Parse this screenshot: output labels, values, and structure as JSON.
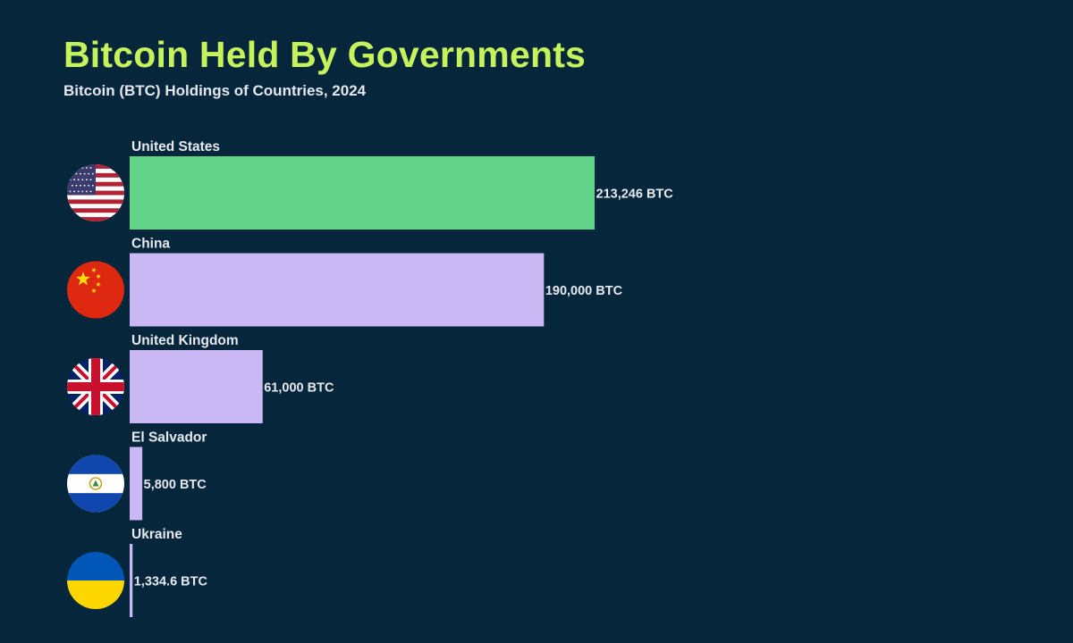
{
  "header": {
    "title": "Bitcoin Held By Governments",
    "subtitle": "Bitcoin (BTC) Holdings of Countries, 2024"
  },
  "chart_data": {
    "type": "bar",
    "orientation": "horizontal",
    "title": "Bitcoin Held By Governments",
    "subtitle": "Bitcoin (BTC) Holdings of Countries, 2024",
    "xlabel": "",
    "ylabel": "",
    "unit": "BTC",
    "grid": false,
    "legend": "none",
    "categories": [
      "United States",
      "China",
      "United Kingdom",
      "El Salvador",
      "Ukraine"
    ],
    "values": [
      213246,
      190000,
      61000,
      5800,
      1334.6
    ],
    "value_labels": [
      "213,246 BTC",
      "190,000 BTC",
      "61,000 BTC",
      "5,800 BTC",
      "1,334.6 BTC"
    ],
    "flags": [
      "us-flag-icon",
      "china-flag-icon",
      "uk-flag-icon",
      "el-salvador-flag-icon",
      "ukraine-flag-icon"
    ],
    "colors": [
      "#63d38a",
      "#c9b8f3",
      "#c9b8f3",
      "#c9b8f3",
      "#c9b8f3"
    ],
    "xlim": [
      0,
      213246
    ]
  }
}
